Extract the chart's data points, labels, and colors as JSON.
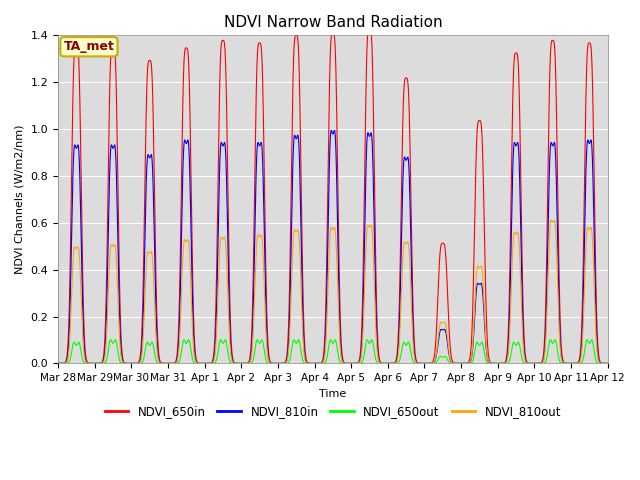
{
  "title": "NDVI Narrow Band Radiation",
  "ylabel": "NDVI Channels (W/m2/nm)",
  "xlabel": "Time",
  "annotation": "TA_met",
  "ylim": [
    0,
    1.4
  ],
  "legend": [
    "NDVI_650in",
    "NDVI_810in",
    "NDVI_650out",
    "NDVI_810out"
  ],
  "colors": [
    "red",
    "blue",
    "limegreen",
    "orange"
  ],
  "x_tick_labels": [
    "Mar 28",
    "Mar 29",
    "Mar 30",
    "Mar 31",
    "Apr 1",
    "Apr 2",
    "Apr 3",
    "Apr 4",
    "Apr 5",
    "Apr 6",
    "Apr 7",
    "Apr 8",
    "Apr 9",
    "Apr 10",
    "Apr 11",
    "Apr 12"
  ],
  "background_color": "#f0f0f0",
  "plot_bg": "#e8e8e8",
  "peaks_650in": [
    1.28,
    1.28,
    1.21,
    1.26,
    1.29,
    1.28,
    1.31,
    1.32,
    1.34,
    1.14,
    0.48,
    0.97,
    1.24,
    1.29,
    1.28
  ],
  "peaks_810in": [
    0.9,
    0.9,
    0.86,
    0.92,
    0.91,
    0.91,
    0.94,
    0.96,
    0.95,
    0.85,
    0.14,
    0.33,
    0.91,
    0.91,
    0.92
  ],
  "peaks_650out": [
    0.09,
    0.1,
    0.09,
    0.1,
    0.1,
    0.1,
    0.1,
    0.1,
    0.1,
    0.09,
    0.03,
    0.09,
    0.09,
    0.1,
    0.1
  ],
  "peaks_810out": [
    0.48,
    0.49,
    0.46,
    0.51,
    0.52,
    0.53,
    0.55,
    0.56,
    0.57,
    0.5,
    0.17,
    0.4,
    0.54,
    0.59,
    0.56
  ],
  "sig_650in": 0.07,
  "sig_810in": 0.065,
  "sig_650out": 0.055,
  "sig_810out": 0.065,
  "n_days": 15
}
